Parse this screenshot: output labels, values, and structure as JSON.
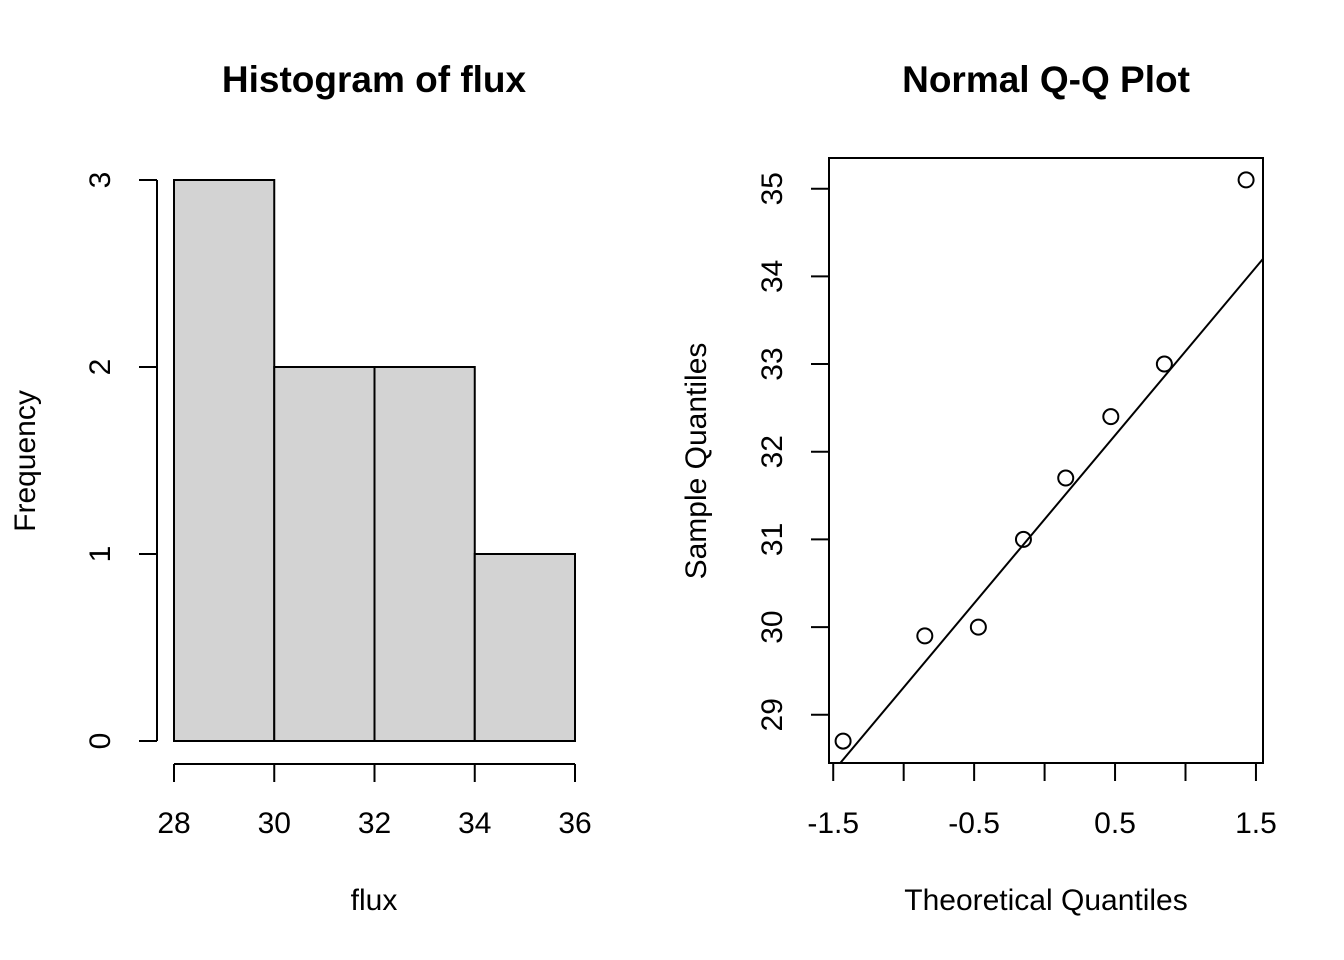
{
  "chart_data": [
    {
      "type": "bar",
      "title": "Histogram of flux",
      "xlabel": "flux",
      "ylabel": "Frequency",
      "bins": [
        {
          "start": 28,
          "end": 30,
          "count": 3
        },
        {
          "start": 30,
          "end": 32,
          "count": 2
        },
        {
          "start": 32,
          "end": 34,
          "count": 2
        },
        {
          "start": 34,
          "end": 36,
          "count": 1
        }
      ],
      "xticks": [
        28,
        30,
        32,
        34,
        36
      ],
      "yticks": [
        0,
        1,
        2,
        3
      ],
      "xlim": [
        28,
        36
      ],
      "ylim": [
        0,
        3
      ],
      "bar_color": "#d3d3d3",
      "grid": false
    },
    {
      "type": "scatter",
      "title": "Normal Q-Q Plot",
      "xlabel": "Theoretical Quantiles",
      "ylabel": "Sample Quantiles",
      "points": [
        {
          "x": -1.43,
          "y": 28.7
        },
        {
          "x": -0.85,
          "y": 29.9
        },
        {
          "x": -0.47,
          "y": 30.0
        },
        {
          "x": -0.15,
          "y": 31.0
        },
        {
          "x": 0.15,
          "y": 31.7
        },
        {
          "x": 0.47,
          "y": 32.4
        },
        {
          "x": 0.85,
          "y": 33.0
        },
        {
          "x": 1.43,
          "y": 35.1
        }
      ],
      "reference_line": {
        "x1": -1.45,
        "y1": 28.45,
        "x2": 1.55,
        "y2": 34.2
      },
      "xticks": [
        -1.5,
        -1.0,
        -0.5,
        0.0,
        0.5,
        1.0,
        1.5
      ],
      "xtick_labels": [
        "-1.5",
        "",
        "-0.5",
        "",
        "0.5",
        "",
        "1.5"
      ],
      "yticks": [
        29,
        30,
        31,
        32,
        33,
        34,
        35
      ],
      "xlim": [
        -1.53,
        1.55
      ],
      "ylim": [
        28.45,
        35.35
      ],
      "marker": "open-circle",
      "grid": false
    }
  ]
}
